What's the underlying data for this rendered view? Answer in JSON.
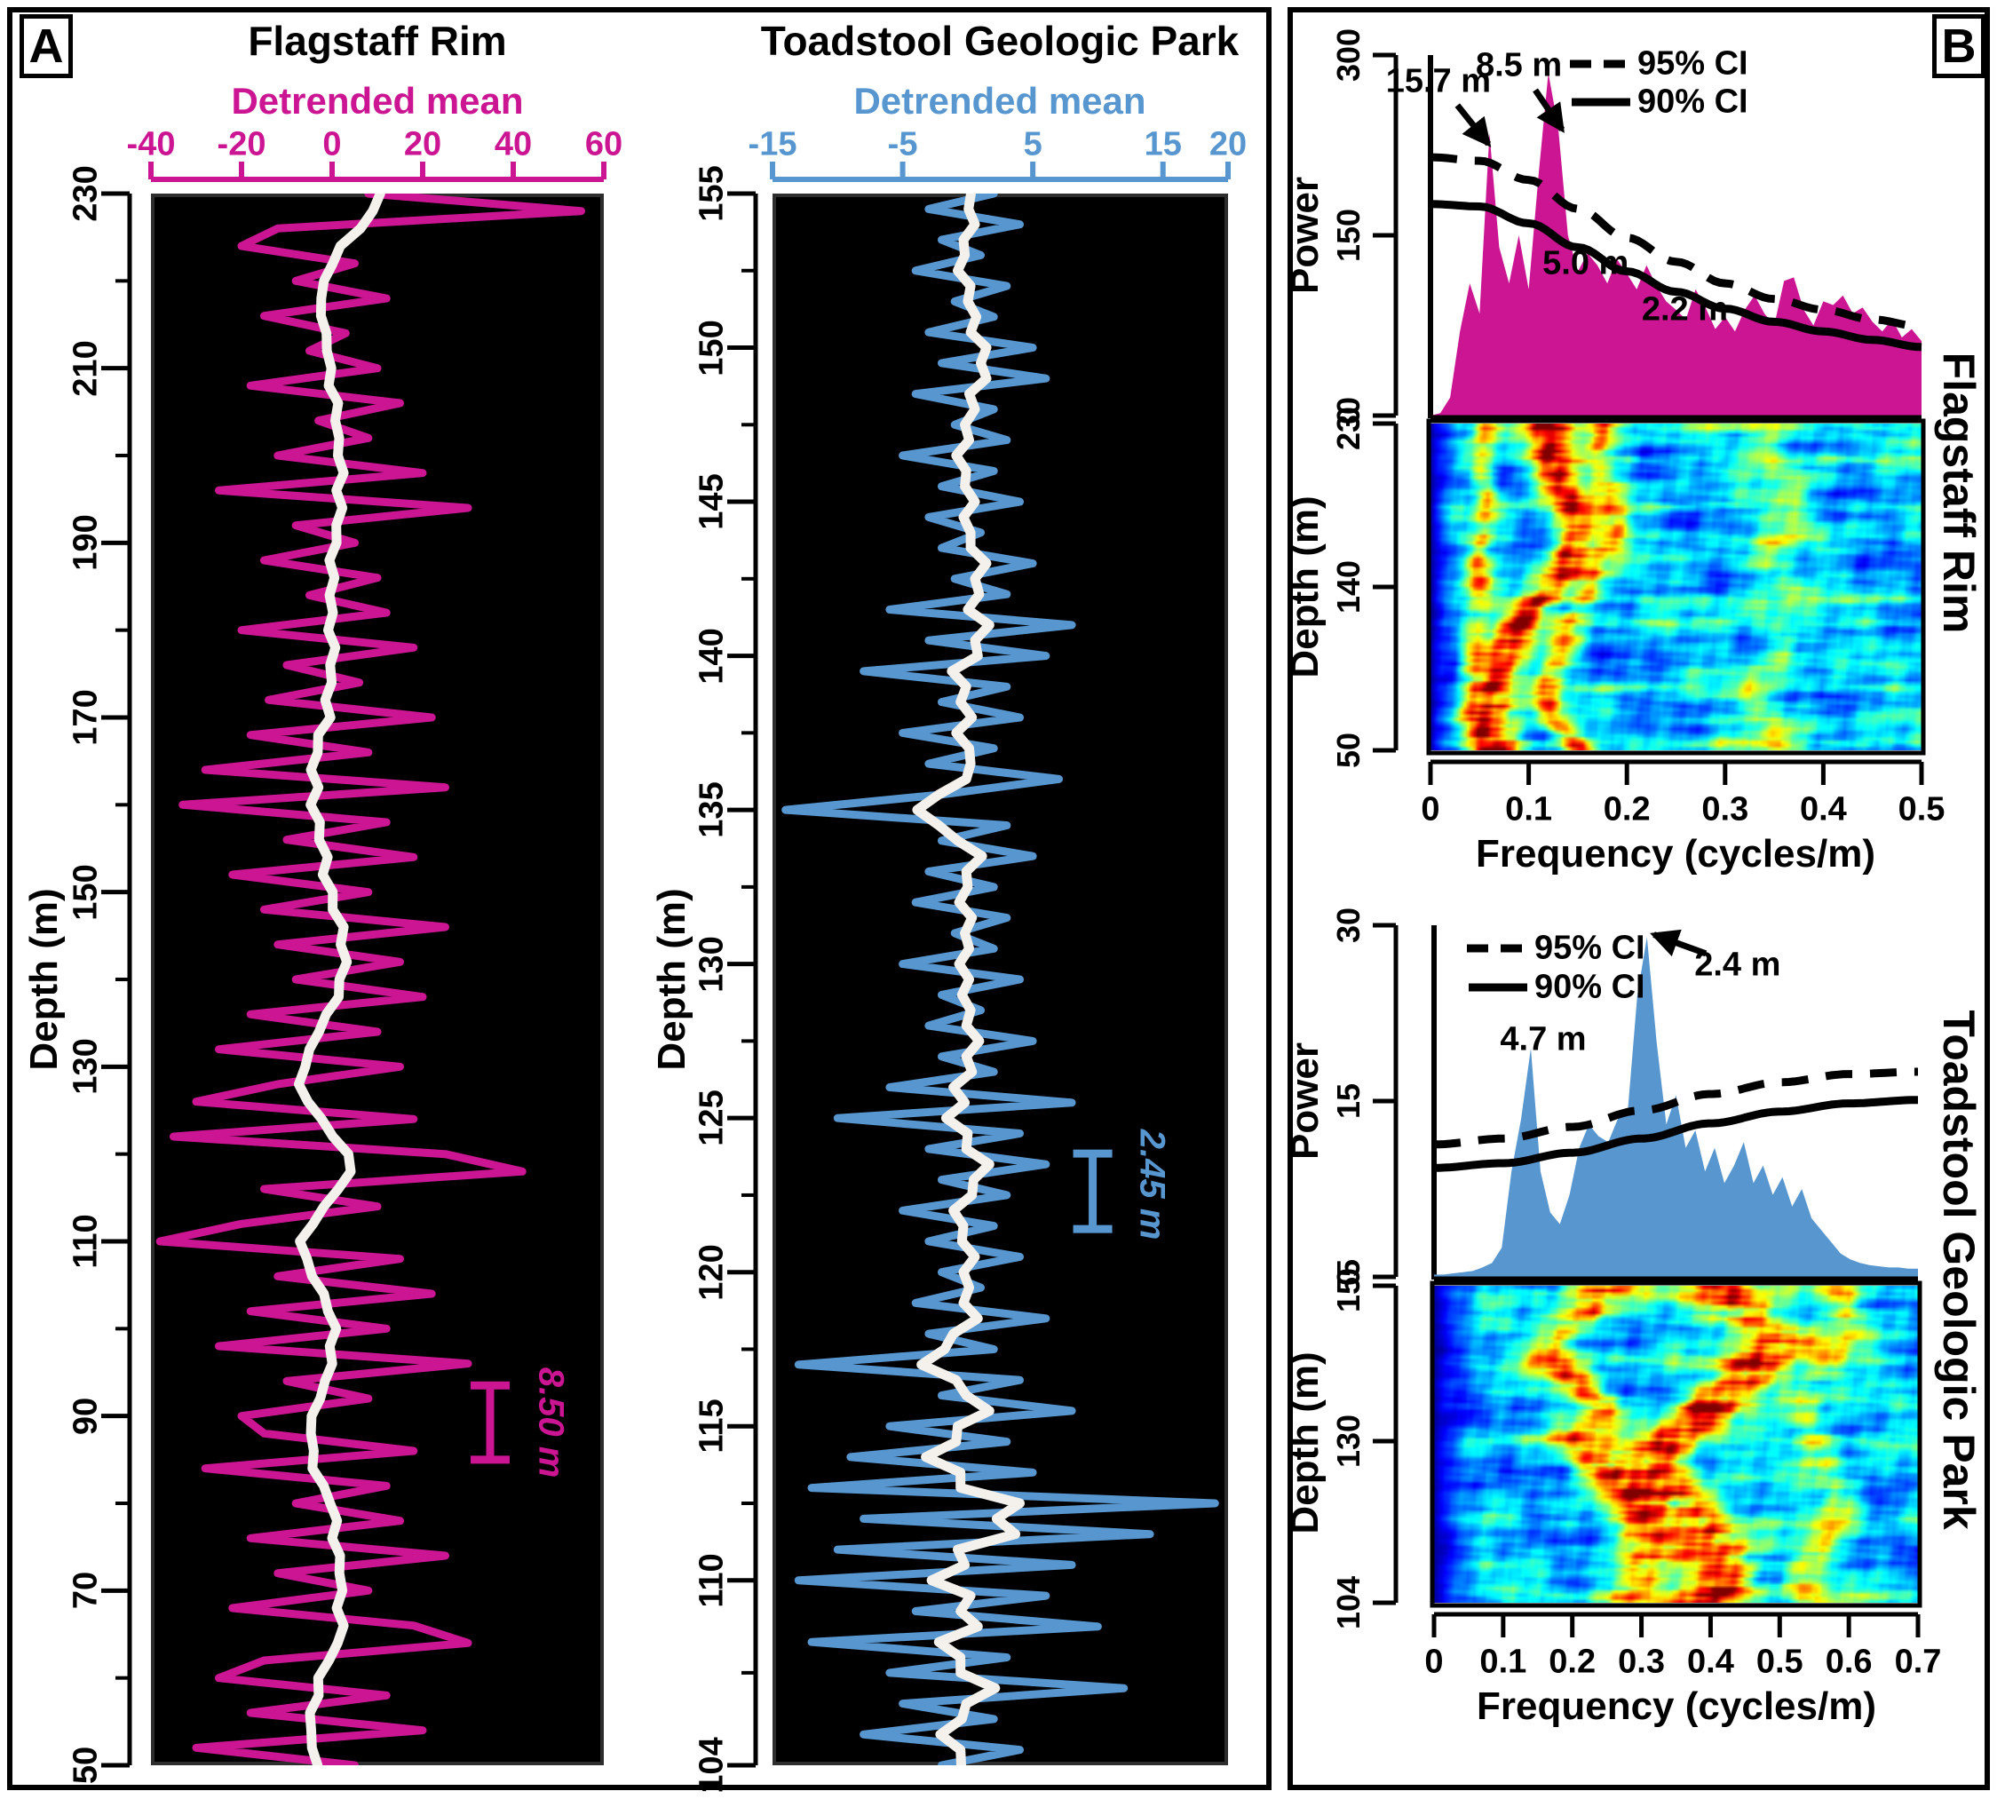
{
  "figure": {
    "panel_a_label": "A",
    "panel_b_label": "B"
  },
  "chart_data": [
    {
      "id": "flagstaff_depth_series",
      "type": "line",
      "title": "Flagstaff Rim",
      "xlabel": "Detrended mean",
      "ylabel": "Depth (m)",
      "xlim": [
        -40,
        60
      ],
      "x_ticks": [
        -40,
        -20,
        0,
        20,
        40,
        60
      ],
      "ylim": [
        230,
        50
      ],
      "y_ticks": [
        230,
        210,
        190,
        170,
        150,
        130,
        110,
        90,
        70,
        50
      ],
      "y_minor_ticks": [
        220,
        200,
        180,
        160,
        140,
        120,
        100,
        80,
        60
      ],
      "grid": false,
      "scale_bar": {
        "label": "8.50 m",
        "value_x": 34.9,
        "depth_top": 85.0,
        "depth_bottom": 93.5
      },
      "series": [
        {
          "name": "detrended mean",
          "color": "#CB1592",
          "depth_start": 230,
          "depth_step": -2,
          "values": [
            8,
            55,
            -12,
            -20,
            5,
            -8,
            12,
            -15,
            3,
            -5,
            10,
            -18,
            15,
            -3,
            8,
            -12,
            20,
            -25,
            30,
            -8,
            5,
            -15,
            10,
            -5,
            12,
            -20,
            18,
            -10,
            6,
            -14,
            22,
            -18,
            8,
            -28,
            25,
            -33,
            12,
            -10,
            18,
            -22,
            8,
            -15,
            25,
            -12,
            15,
            -8,
            20,
            -18,
            10,
            -25,
            15,
            -12,
            -30,
            18,
            -35,
            25,
            42,
            -15,
            10,
            -20,
            -38,
            15,
            -12,
            22,
            -18,
            12,
            -25,
            30,
            -10,
            8,
            -20,
            -15,
            18,
            -28,
            12,
            -8,
            15,
            -18,
            25,
            -12,
            8,
            -22,
            18,
            30,
            -15,
            -25,
            12,
            -18,
            20,
            -30,
            5
          ]
        },
        {
          "name": "smoothed (8.5 m filter)",
          "color": "#F4F1EC",
          "derived": "moving-average",
          "window": 5,
          "passes": 2
        }
      ]
    },
    {
      "id": "toadstool_depth_series",
      "type": "line",
      "title": "Toadstool Geologic Park",
      "xlabel": "Detrended mean",
      "ylabel": "Depth (m)",
      "xlim": [
        -15,
        20
      ],
      "x_ticks": [
        -15,
        -5,
        5,
        15,
        20
      ],
      "ylim": [
        155,
        104
      ],
      "y_ticks": [
        155,
        150,
        145,
        140,
        135,
        130,
        125,
        120,
        115,
        110,
        104
      ],
      "y_minor_ticks": [
        152.5,
        147.5,
        142.5,
        137.5,
        132.5,
        127.5,
        122.5,
        117.5,
        112.5,
        107
      ],
      "grid": false,
      "scale_bar": {
        "label": "2.45 m",
        "value_x": 9.6,
        "depth_top": 121.4,
        "depth_bottom": 123.85
      },
      "series": [
        {
          "name": "detrended mean",
          "color": "#5796CF",
          "depth_start": 155,
          "depth_step": -0.5,
          "values": [
            2,
            -3,
            4,
            -2,
            1,
            -4,
            3,
            -1,
            2,
            -3,
            5,
            -2,
            6,
            -4,
            2,
            -1,
            3,
            -5,
            2,
            -2,
            4,
            -3,
            1,
            -2,
            5,
            -1,
            3,
            -6,
            8,
            -3,
            6,
            -8,
            3,
            -2,
            4,
            -5,
            2,
            -3,
            7,
            -2,
            -14,
            3,
            -2,
            5,
            -3,
            2,
            -4,
            3,
            -1,
            2,
            -5,
            4,
            -2,
            1,
            -3,
            5,
            -2,
            2,
            -6,
            8,
            -10,
            4,
            -3,
            6,
            -2,
            3,
            -5,
            2,
            -3,
            4,
            -2,
            1,
            -4,
            6,
            -3,
            2,
            -13,
            4,
            -2,
            8,
            -6,
            3,
            -9,
            5,
            -12,
            19,
            -8,
            14,
            -10,
            8,
            -13,
            6,
            -4,
            10,
            -12,
            3,
            -6,
            12,
            -5,
            2,
            -8,
            4,
            -2
          ]
        },
        {
          "name": "smoothed (2.45 m filter)",
          "color": "#F4F1EC",
          "derived": "moving-average",
          "window": 3,
          "passes": 2
        }
      ]
    },
    {
      "id": "flagstaff_spectral",
      "type": "area",
      "site": "Flagstaff Rim",
      "power_label": "Power",
      "power_ticks": [
        300,
        150,
        0
      ],
      "power_max": 300,
      "color": "#CB1592",
      "f_step": 0.01,
      "f_max": 0.5,
      "power": [
        0,
        2,
        15,
        70,
        110,
        85,
        235,
        140,
        110,
        150,
        105,
        200,
        285,
        240,
        150,
        120,
        135,
        125,
        110,
        130,
        118,
        105,
        125,
        108,
        95,
        88,
        80,
        105,
        90,
        72,
        82,
        70,
        88,
        100,
        85,
        75,
        112,
        115,
        88,
        75,
        95,
        92,
        100,
        85,
        90,
        78,
        70,
        80,
        65,
        72,
        62
      ],
      "ci95": [
        [
          0,
          215
        ],
        [
          0.05,
          212
        ],
        [
          0.1,
          196
        ],
        [
          0.15,
          172
        ],
        [
          0.2,
          148
        ],
        [
          0.25,
          128
        ],
        [
          0.3,
          110
        ],
        [
          0.35,
          97
        ],
        [
          0.4,
          88
        ],
        [
          0.45,
          80
        ],
        [
          0.5,
          74
        ]
      ],
      "ci90": [
        [
          0,
          176
        ],
        [
          0.05,
          174
        ],
        [
          0.1,
          160
        ],
        [
          0.15,
          140
        ],
        [
          0.2,
          120
        ],
        [
          0.25,
          103
        ],
        [
          0.3,
          89
        ],
        [
          0.35,
          78
        ],
        [
          0.4,
          70
        ],
        [
          0.45,
          63
        ],
        [
          0.5,
          57
        ]
      ],
      "legend": [
        {
          "label": "95% CI",
          "style": "dashed"
        },
        {
          "label": "90% CI",
          "style": "solid"
        }
      ],
      "annotations": [
        {
          "text": "15.7 m",
          "f": 0.008,
          "power": 278,
          "arrow_f": 0.059,
          "arrow_power": 226
        },
        {
          "text": "8.5 m",
          "f": 0.09,
          "power": 291,
          "arrow_f": 0.134,
          "arrow_power": 238
        },
        {
          "text": "5.0 m",
          "f": 0.158,
          "power": 126,
          "arrow_f": null,
          "arrow_power": null
        },
        {
          "text": "2.2 m",
          "f": 0.259,
          "power": 88,
          "arrow_f": null,
          "arrow_power": null
        }
      ],
      "heatmap": {
        "type": "heatmap",
        "colormap": "jet",
        "depth_label": "Depth (m)",
        "depth_ticks": [
          230,
          140,
          50
        ],
        "depth_range": [
          230,
          50
        ],
        "freq_label": "Frequency (cycles/m)",
        "freq_ticks": [
          0,
          0.1,
          0.2,
          0.3,
          0.4,
          0.5
        ],
        "f_margin": 0.03,
        "band_width": 2.5,
        "seed": 3.7,
        "ridges": [
          {
            "path": [
              [
                230,
                0.115
              ],
              [
                210,
                0.125
              ],
              [
                195,
                0.13
              ],
              [
                180,
                0.145
              ],
              [
                165,
                0.15
              ],
              [
                150,
                0.135
              ],
              [
                140,
                0.125
              ],
              [
                128,
                0.1
              ],
              [
                115,
                0.085
              ],
              [
                100,
                0.075
              ],
              [
                85,
                0.065
              ],
              [
                70,
                0.06
              ],
              [
                50,
                0.07
              ]
            ],
            "w": 0.022,
            "s": 1.8
          },
          {
            "path": [
              [
                230,
                0.175
              ],
              [
                210,
                0.165
              ],
              [
                195,
                0.185
              ],
              [
                175,
                0.19
              ],
              [
                155,
                0.175
              ],
              [
                140,
                0.16
              ],
              [
                125,
                0.145
              ],
              [
                110,
                0.135
              ],
              [
                95,
                0.125
              ],
              [
                80,
                0.115
              ],
              [
                65,
                0.125
              ],
              [
                50,
                0.15
              ]
            ],
            "w": 0.016,
            "s": 1.1
          },
          {
            "path": [
              [
                230,
                0.055
              ],
              [
                210,
                0.05
              ],
              [
                190,
                0.058
              ],
              [
                170,
                0.052
              ],
              [
                150,
                0.048
              ],
              [
                130,
                0.05
              ],
              [
                110,
                0.045
              ],
              [
                90,
                0.04
              ],
              [
                70,
                0.045
              ],
              [
                50,
                0.048
              ]
            ],
            "w": 0.013,
            "s": 1.0
          },
          {
            "path": [
              [
                230,
                0.36
              ],
              [
                215,
                0.34
              ],
              [
                200,
                0.38
              ],
              [
                185,
                0.35
              ],
              [
                170,
                0.37
              ],
              [
                155,
                0.33
              ],
              [
                140,
                0.36
              ],
              [
                125,
                0.34
              ],
              [
                110,
                0.37
              ],
              [
                95,
                0.35
              ],
              [
                80,
                0.33
              ],
              [
                65,
                0.36
              ],
              [
                50,
                0.34
              ]
            ],
            "w": 0.03,
            "s": 0.55
          }
        ],
        "bands": [
          [
            229,
            0.9
          ],
          [
            222,
            0.5
          ],
          [
            211,
            0.7
          ],
          [
            185,
            0.6
          ],
          [
            168,
            0.4
          ],
          [
            133,
            0.7
          ],
          [
            120,
            0.5
          ],
          [
            84,
            0.6
          ],
          [
            66,
            0.5
          ],
          [
            53,
            0.8
          ]
        ]
      }
    },
    {
      "id": "toadstool_spectral",
      "type": "area",
      "site": "Toadstool Geologic Park",
      "power_label": "Power",
      "power_ticks": [
        30,
        15,
        0
      ],
      "power_max": 30,
      "color": "#5796CF",
      "f_step": 0.014,
      "f_max": 0.7,
      "power": [
        0.2,
        0.2,
        0.3,
        0.4,
        0.5,
        0.8,
        1.2,
        2.5,
        9,
        13.5,
        19.5,
        9,
        5.5,
        4.5,
        7,
        11,
        13,
        12,
        11.5,
        13.5,
        14,
        24,
        29,
        20,
        13,
        15.5,
        11,
        12.5,
        9,
        11,
        8,
        9.5,
        11.5,
        8,
        9.5,
        7,
        8.5,
        6,
        7.5,
        5,
        4,
        3,
        2,
        1.5,
        1.2,
        1,
        0.9,
        0.8,
        0.8,
        0.7,
        0.7
      ],
      "ci95": [
        [
          0,
          11.3
        ],
        [
          0.1,
          11.8
        ],
        [
          0.2,
          12.8
        ],
        [
          0.3,
          14.2
        ],
        [
          0.4,
          15.6
        ],
        [
          0.5,
          16.6
        ],
        [
          0.6,
          17.3
        ],
        [
          0.7,
          17.5
        ]
      ],
      "ci90": [
        [
          0,
          9.3
        ],
        [
          0.1,
          9.7
        ],
        [
          0.2,
          10.6
        ],
        [
          0.3,
          11.8
        ],
        [
          0.4,
          13.1
        ],
        [
          0.5,
          14.1
        ],
        [
          0.6,
          14.8
        ],
        [
          0.7,
          15.1
        ]
      ],
      "legend": [
        {
          "label": "95% CI",
          "style": "dashed"
        },
        {
          "label": "90% CI",
          "style": "solid"
        }
      ],
      "annotations": [
        {
          "text": "4.7 m",
          "f": 0.158,
          "power": 20.2,
          "arrow_f": null,
          "arrow_power": null
        },
        {
          "text": "2.4 m",
          "f": 0.439,
          "power": 26.6,
          "arrow_f": 0.318,
          "arrow_power": 29.2
        }
      ],
      "heatmap": {
        "type": "heatmap",
        "colormap": "jet",
        "depth_label": "Depth (m)",
        "depth_ticks": [
          155,
          130,
          104
        ],
        "depth_range": [
          155,
          104
        ],
        "freq_label": "Frequency (cycles/m)",
        "freq_ticks": [
          0,
          0.1,
          0.2,
          0.3,
          0.4,
          0.5,
          0.6,
          0.7
        ],
        "f_margin": 0.07,
        "band_width": 1.2,
        "seed": 9.2,
        "ridges": [
          {
            "path": [
              [
                155,
                0.41
              ],
              [
                150,
                0.45
              ],
              [
                146,
                0.5
              ],
              [
                142,
                0.47
              ],
              [
                138,
                0.43
              ],
              [
                134,
                0.38
              ],
              [
                130,
                0.34
              ],
              [
                126,
                0.31
              ],
              [
                122,
                0.34
              ],
              [
                118,
                0.38
              ],
              [
                113,
                0.41
              ],
              [
                108,
                0.42
              ],
              [
                104,
                0.39
              ]
            ],
            "w": 0.055,
            "s": 1.8
          },
          {
            "path": [
              [
                155,
                0.25
              ],
              [
                151,
                0.22
              ],
              [
                147,
                0.18
              ],
              [
                143,
                0.17
              ],
              [
                139,
                0.21
              ],
              [
                135,
                0.25
              ],
              [
                131,
                0.21
              ],
              [
                127,
                0.23
              ],
              [
                123,
                0.27
              ],
              [
                119,
                0.29
              ],
              [
                114,
                0.31
              ],
              [
                108,
                0.3
              ],
              [
                104,
                0.27
              ]
            ],
            "w": 0.04,
            "s": 1.3
          },
          {
            "path": [
              [
                155,
                0.58
              ],
              [
                148,
                0.61
              ],
              [
                141,
                0.56
              ],
              [
                134,
                0.53
              ],
              [
                127,
                0.56
              ],
              [
                120,
                0.59
              ],
              [
                113,
                0.56
              ],
              [
                107,
                0.53
              ],
              [
                104,
                0.55
              ]
            ],
            "w": 0.035,
            "s": 0.8
          }
        ],
        "bands": [
          [
            154,
            0.8
          ],
          [
            143,
            0.6
          ],
          [
            130,
            0.7
          ],
          [
            117,
            0.4
          ],
          [
            105,
            0.7
          ]
        ]
      }
    }
  ]
}
